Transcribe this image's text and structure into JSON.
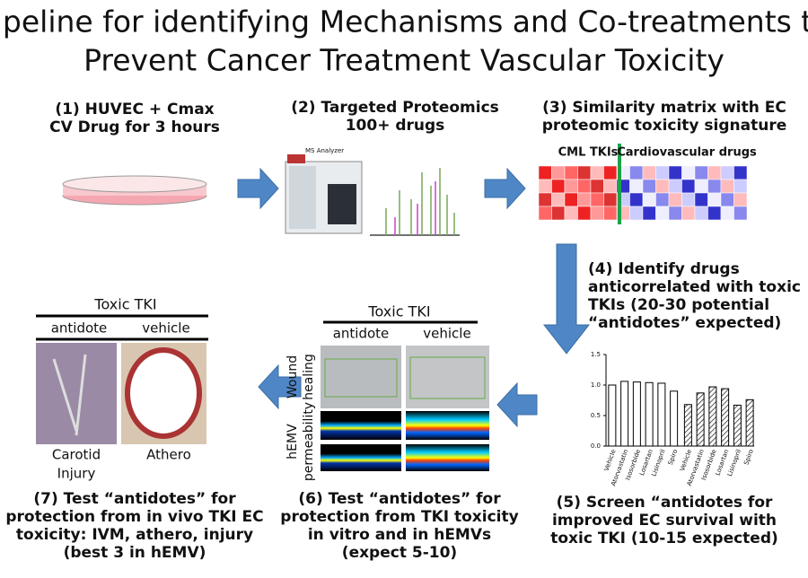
{
  "title": [
    "Pipeline for identifying Mechanisms and Co-treatments to",
    "Prevent Cancer Treatment Vascular Toxicity"
  ],
  "steps": [
    {
      "lines": [
        "(1) HUVEC + Cmax",
        "CV Drug for 3 hours"
      ]
    },
    {
      "lines": [
        "(2) Targeted Proteomics",
        "100+ drugs"
      ],
      "instrument": "MS Analyzer"
    },
    {
      "lines": [
        "(3) Similarity matrix with EC",
        "proteomic toxicity signature"
      ],
      "matrix_labels": [
        "CML TKIs",
        "Cardiovascular drugs"
      ]
    },
    {
      "lines": [
        "(4) Identify drugs",
        "anticorrelated with toxic",
        "TKIs (20-30 potential",
        "“antidotes” expected)"
      ]
    },
    {
      "lines": [
        "(5) Screen “antidotes for",
        "improved EC survival with",
        "toxic TKI (10-15 expected)"
      ],
      "chart": {
        "type": "bar",
        "categories": [
          "Vehicle",
          "Atorvastatin",
          "Isosorbide",
          "Losartan",
          "Lisinopril",
          "Spiro",
          "Vehicle",
          "Atorvastatin",
          "Isosorbide",
          "Losartan",
          "Lisinopril",
          "Spiro"
        ],
        "values": [
          1.0,
          1.06,
          1.05,
          1.04,
          1.03,
          0.9,
          0.68,
          0.87,
          0.97,
          0.94,
          0.67,
          0.76
        ],
        "ylim": [
          0,
          1.5
        ],
        "yticks": [
          {
            "value": 0,
            "label": "0.0"
          },
          {
            "value": 0.5,
            "label": "0.5"
          },
          {
            "value": 1,
            "label": "1.0"
          },
          {
            "value": 1.5,
            "label": "1.5"
          }
        ]
      }
    },
    {
      "lines": [
        "(6) Test “antidotes” for",
        "protection from TKI toxicity",
        "in vitro and in hEMVs",
        "(expect 5-10)"
      ],
      "header": "Toxic TKI",
      "columns": [
        "antidote",
        "vehicle"
      ],
      "rows": [
        [
          "Wound",
          "healing"
        ],
        [
          "hEMV",
          "permeability"
        ]
      ]
    },
    {
      "lines": [
        "(7) Test “antidotes” for",
        "protection from in vivo TKI EC",
        "toxicity: IVM, athero, injury",
        "(best 3 in hEMV)"
      ],
      "header": "Toxic TKI",
      "columns": [
        "antidote",
        "vehicle"
      ],
      "captions": [
        [
          "Carotid",
          "Injury"
        ],
        [
          "Athero"
        ]
      ]
    }
  ]
}
